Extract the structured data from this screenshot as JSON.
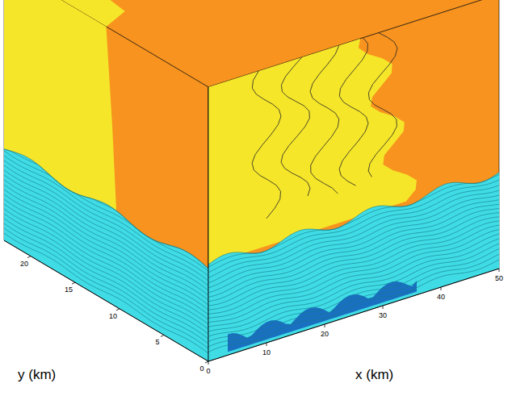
{
  "chart_data": {
    "type": "3d_contour",
    "xlabel": "x (km)",
    "ylabel": "y (km)",
    "xlim": [
      0,
      50
    ],
    "xticks": [
      0,
      10,
      20,
      30,
      40,
      50
    ],
    "ylim": [
      0,
      23
    ],
    "yticks": [
      0,
      5,
      10,
      15,
      20
    ],
    "colors": [
      "#f7931e",
      "#f5e62a",
      "#40dce6",
      "#1a70c0"
    ]
  }
}
